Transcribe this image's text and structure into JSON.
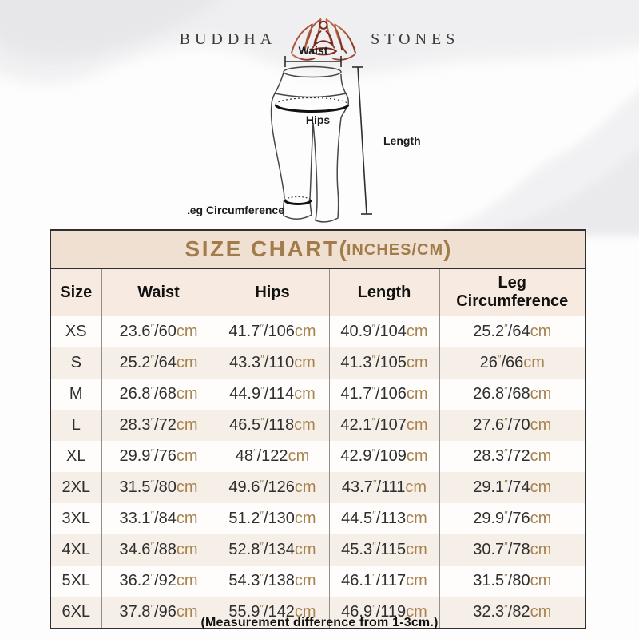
{
  "brand": {
    "name_left": "BUDDHA",
    "name_right": "STONES",
    "icon": "lotus-meditation-icon"
  },
  "diagram": {
    "labels": {
      "waist": "Waist",
      "hips": "Hips",
      "length": "Length",
      "leg_circumference": "Leg Circumference"
    }
  },
  "size_chart": {
    "title": {
      "main": "SIZE CHART",
      "open_paren": "(",
      "units": "INCHES/CM",
      "close_paren": ")"
    },
    "headers": [
      "Size",
      "Waist",
      "Hips",
      "Length",
      "Leg Circumference"
    ],
    "unit_symbols": {
      "inch_mark": "″",
      "cm_label": "cm",
      "separator": "/"
    },
    "rows": [
      {
        "size": "XS",
        "waist": {
          "in": "23.6",
          "cm": "60"
        },
        "hips": {
          "in": "41.7",
          "cm": "106"
        },
        "length": {
          "in": "40.9",
          "cm": "104"
        },
        "leg": {
          "in": "25.2",
          "cm": "64"
        }
      },
      {
        "size": "S",
        "waist": {
          "in": "25.2",
          "cm": "64"
        },
        "hips": {
          "in": "43.3",
          "cm": "110"
        },
        "length": {
          "in": "41.3",
          "cm": "105"
        },
        "leg": {
          "in": "26",
          "cm": "66"
        }
      },
      {
        "size": "M",
        "waist": {
          "in": "26.8",
          "cm": "68"
        },
        "hips": {
          "in": "44.9",
          "cm": "114"
        },
        "length": {
          "in": "41.7",
          "cm": "106"
        },
        "leg": {
          "in": "26.8",
          "cm": "68"
        }
      },
      {
        "size": "L",
        "waist": {
          "in": "28.3",
          "cm": "72"
        },
        "hips": {
          "in": "46.5",
          "cm": "118"
        },
        "length": {
          "in": "42.1",
          "cm": "107"
        },
        "leg": {
          "in": "27.6",
          "cm": "70"
        }
      },
      {
        "size": "XL",
        "waist": {
          "in": "29.9",
          "cm": "76"
        },
        "hips": {
          "in": "48",
          "cm": "122"
        },
        "length": {
          "in": "42.9",
          "cm": "109"
        },
        "leg": {
          "in": "28.3",
          "cm": "72"
        }
      },
      {
        "size": "2XL",
        "waist": {
          "in": "31.5",
          "cm": "80"
        },
        "hips": {
          "in": "49.6",
          "cm": "126"
        },
        "length": {
          "in": "43.7",
          "cm": "111"
        },
        "leg": {
          "in": "29.1",
          "cm": "74"
        }
      },
      {
        "size": "3XL",
        "waist": {
          "in": "33.1",
          "cm": "84"
        },
        "hips": {
          "in": "51.2",
          "cm": "130"
        },
        "length": {
          "in": "44.5",
          "cm": "113"
        },
        "leg": {
          "in": "29.9",
          "cm": "76"
        }
      },
      {
        "size": "4XL",
        "waist": {
          "in": "34.6",
          "cm": "88"
        },
        "hips": {
          "in": "52.8",
          "cm": "134"
        },
        "length": {
          "in": "45.3",
          "cm": "115"
        },
        "leg": {
          "in": "30.7",
          "cm": "78"
        }
      },
      {
        "size": "5XL",
        "waist": {
          "in": "36.2",
          "cm": "92"
        },
        "hips": {
          "in": "54.3",
          "cm": "138"
        },
        "length": {
          "in": "46.1",
          "cm": "117"
        },
        "leg": {
          "in": "31.5",
          "cm": "80"
        }
      },
      {
        "size": "6XL",
        "waist": {
          "in": "37.8",
          "cm": "96"
        },
        "hips": {
          "in": "55.9",
          "cm": "142"
        },
        "length": {
          "in": "46.9",
          "cm": "119"
        },
        "leg": {
          "in": "32.3",
          "cm": "82"
        }
      }
    ]
  },
  "footnote": "(Measurement difference from 1-3cm.)",
  "colors": {
    "tan_text": "#a8834f",
    "title_text": "#a17c4a",
    "band_bg": "#f0e0d2",
    "header_row_bg": "#f7ebe1",
    "stripe_bg": "#f6efe7",
    "border_dark": "#2f2f2f",
    "logo_gradient_start": "#c9764e",
    "logo_gradient_end": "#7b2a1a"
  },
  "chart_data": {
    "type": "table",
    "title": "SIZE CHART(INCHES/CM)",
    "columns": [
      "Size",
      "Waist",
      "Hips",
      "Length",
      "Leg Circumference"
    ],
    "rows": [
      [
        "XS",
        "23.6″/60cm",
        "41.7″/106cm",
        "40.9″/104cm",
        "25.2″/64cm"
      ],
      [
        "S",
        "25.2″/64cm",
        "43.3″/110cm",
        "41.3″/105cm",
        "26″/66cm"
      ],
      [
        "M",
        "26.8″/68cm",
        "44.9″/114cm",
        "41.7″/106cm",
        "26.8″/68cm"
      ],
      [
        "L",
        "28.3″/72cm",
        "46.5″/118cm",
        "42.1″/107cm",
        "27.6″/70cm"
      ],
      [
        "XL",
        "29.9″/76cm",
        "48″/122cm",
        "42.9″/109cm",
        "28.3″/72cm"
      ],
      [
        "2XL",
        "31.5″/80cm",
        "49.6″/126cm",
        "43.7″/111cm",
        "29.1″/74cm"
      ],
      [
        "3XL",
        "33.1″/84cm",
        "51.2″/130cm",
        "44.5″/113cm",
        "29.9″/76cm"
      ],
      [
        "4XL",
        "34.6″/88cm",
        "52.8″/134cm",
        "45.3″/115cm",
        "30.7″/78cm"
      ],
      [
        "5XL",
        "36.2″/92cm",
        "54.3″/138cm",
        "46.1″/117cm",
        "31.5″/80cm"
      ],
      [
        "6XL",
        "37.8″/96cm",
        "55.9″/142cm",
        "46.9″/119cm",
        "32.3″/82cm"
      ]
    ],
    "footnote": "(Measurement difference from 1-3cm.)"
  }
}
